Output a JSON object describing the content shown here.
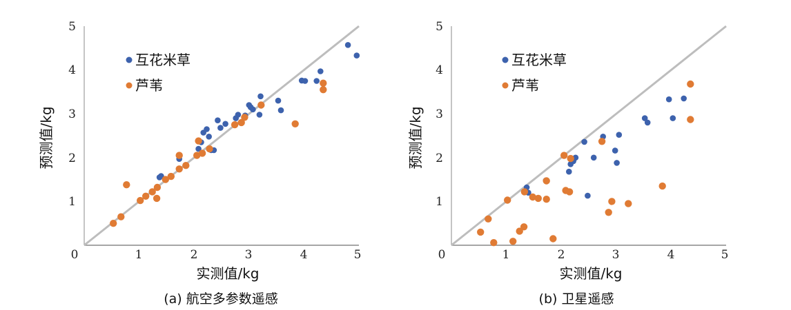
{
  "colors": {
    "series1": "#3d62ad",
    "series2": "#e07b34",
    "line": "#bdbdbd"
  },
  "chart_data": [
    {
      "type": "scatter",
      "caption": "(a) 航空多参数遥感",
      "xlabel": "实测值/kg",
      "ylabel": "预测值/kg",
      "xlim": [
        0,
        5
      ],
      "ylim": [
        0,
        5
      ],
      "xticks": [
        "0",
        "1",
        "2",
        "3",
        "4",
        "5"
      ],
      "yticks": [
        "1",
        "2",
        "3",
        "4",
        "5"
      ],
      "reference_line": "y = x",
      "series": [
        {
          "name": "互花米草",
          "points": [
            [
              1.4,
              1.58
            ],
            [
              1.37,
              1.55
            ],
            [
              1.73,
              1.97
            ],
            [
              2.08,
              2.2
            ],
            [
              2.13,
              2.35
            ],
            [
              2.17,
              2.57
            ],
            [
              2.23,
              2.65
            ],
            [
              2.27,
              2.48
            ],
            [
              2.31,
              2.17
            ],
            [
              2.36,
              2.17
            ],
            [
              2.43,
              2.85
            ],
            [
              2.48,
              2.68
            ],
            [
              2.57,
              2.77
            ],
            [
              2.76,
              2.9
            ],
            [
              2.8,
              2.98
            ],
            [
              2.93,
              2.96
            ],
            [
              3.0,
              3.2
            ],
            [
              3.03,
              3.15
            ],
            [
              3.07,
              3.1
            ],
            [
              3.21,
              3.4
            ],
            [
              3.19,
              2.98
            ],
            [
              3.53,
              3.3
            ],
            [
              3.58,
              3.08
            ],
            [
              3.96,
              3.76
            ],
            [
              4.02,
              3.75
            ],
            [
              4.23,
              3.75
            ],
            [
              4.3,
              3.97
            ],
            [
              4.8,
              4.57
            ],
            [
              4.96,
              4.33
            ]
          ]
        },
        {
          "name": "芦苇",
          "points": [
            [
              0.53,
              0.5
            ],
            [
              0.67,
              0.65
            ],
            [
              0.77,
              1.38
            ],
            [
              1.02,
              1.02
            ],
            [
              1.12,
              1.12
            ],
            [
              1.24,
              1.22
            ],
            [
              1.32,
              1.07
            ],
            [
              1.33,
              1.32
            ],
            [
              1.48,
              1.5
            ],
            [
              1.58,
              1.57
            ],
            [
              1.73,
              2.05
            ],
            [
              1.73,
              1.74
            ],
            [
              1.85,
              1.82
            ],
            [
              2.05,
              2.05
            ],
            [
              2.08,
              2.38
            ],
            [
              2.15,
              2.1
            ],
            [
              2.28,
              2.2
            ],
            [
              2.74,
              2.75
            ],
            [
              2.86,
              2.8
            ],
            [
              2.92,
              2.92
            ],
            [
              3.22,
              3.2
            ],
            [
              3.84,
              2.77
            ],
            [
              4.35,
              3.7
            ],
            [
              4.35,
              3.55
            ]
          ]
        }
      ]
    },
    {
      "type": "scatter",
      "caption": "(b) 卫星遥感",
      "xlabel": "实测值/kg",
      "ylabel": "预测值/kg",
      "xlim": [
        0,
        5
      ],
      "ylim": [
        0,
        5
      ],
      "xticks": [
        "0",
        "1",
        "2",
        "3",
        "4",
        "5"
      ],
      "yticks": [
        "1",
        "2",
        "3",
        "4",
        "5"
      ],
      "reference_line": "y = x",
      "series": [
        {
          "name": "互花米草",
          "points": [
            [
              1.37,
              1.32
            ],
            [
              1.4,
              1.2
            ],
            [
              1.72,
              1.48
            ],
            [
              2.14,
              1.68
            ],
            [
              2.17,
              1.85
            ],
            [
              2.22,
              1.92
            ],
            [
              2.26,
              2.0
            ],
            [
              2.42,
              2.36
            ],
            [
              2.48,
              1.13
            ],
            [
              2.59,
              2.0
            ],
            [
              2.76,
              2.48
            ],
            [
              2.98,
              2.16
            ],
            [
              3.01,
              1.88
            ],
            [
              3.05,
              2.52
            ],
            [
              3.52,
              2.9
            ],
            [
              3.57,
              2.8
            ],
            [
              3.96,
              3.33
            ],
            [
              4.03,
              2.9
            ],
            [
              4.23,
              3.35
            ]
          ]
        },
        {
          "name": "芦苇",
          "points": [
            [
              0.53,
              0.3
            ],
            [
              0.67,
              0.6
            ],
            [
              0.77,
              0.06
            ],
            [
              1.02,
              1.03
            ],
            [
              1.12,
              0.09
            ],
            [
              1.24,
              0.32
            ],
            [
              1.32,
              0.42
            ],
            [
              1.33,
              1.22
            ],
            [
              1.48,
              1.1
            ],
            [
              1.58,
              1.07
            ],
            [
              1.73,
              1.05
            ],
            [
              1.73,
              1.47
            ],
            [
              1.85,
              0.15
            ],
            [
              2.05,
              2.05
            ],
            [
              2.08,
              1.25
            ],
            [
              2.15,
              1.22
            ],
            [
              2.17,
              1.98
            ],
            [
              2.74,
              2.37
            ],
            [
              2.86,
              0.75
            ],
            [
              2.92,
              1.0
            ],
            [
              3.22,
              0.95
            ],
            [
              3.84,
              1.35
            ],
            [
              4.35,
              3.68
            ],
            [
              4.35,
              2.87
            ]
          ]
        }
      ]
    }
  ]
}
